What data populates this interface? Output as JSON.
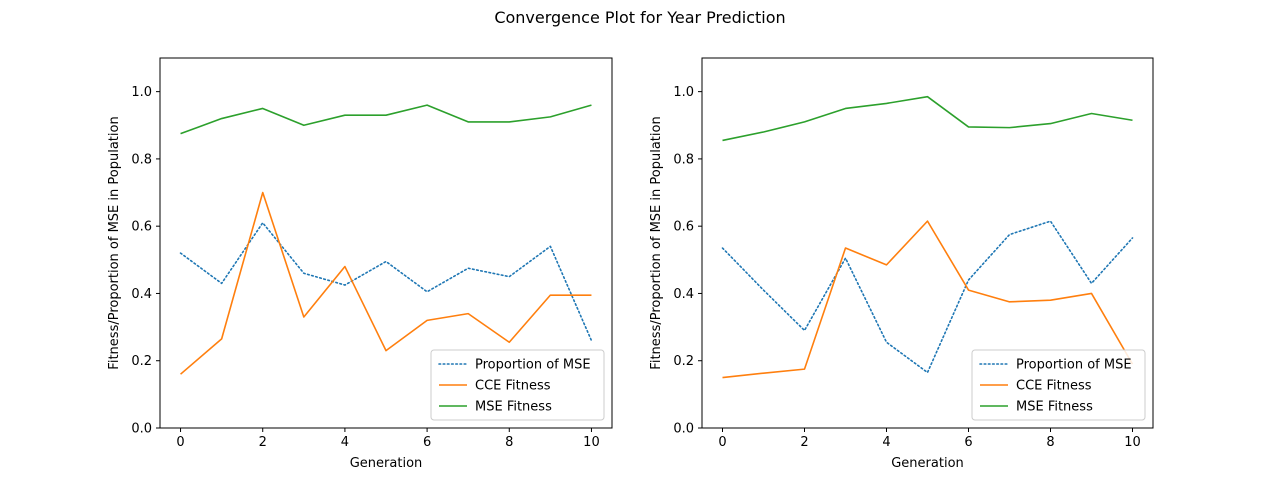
{
  "figure": {
    "title": "Convergence Plot for Year Prediction"
  },
  "colors": {
    "proportion": "#1f77b4",
    "cce": "#ff7f0e",
    "mse": "#2ca02c"
  },
  "chart_data": [
    {
      "type": "line",
      "title": "",
      "xlabel": "Generation",
      "ylabel": "Fitness/Proportion of MSE in Population",
      "xlim": [
        -0.5,
        10.5
      ],
      "ylim": [
        0.0,
        1.1
      ],
      "xticks": [
        "0",
        "2",
        "4",
        "6",
        "8",
        "10"
      ],
      "yticks": [
        "0.0",
        "0.2",
        "0.4",
        "0.6",
        "0.8",
        "1.0"
      ],
      "legend_position": "lower-right",
      "grid": false,
      "x": [
        0,
        1,
        2,
        3,
        4,
        5,
        6,
        7,
        8,
        9,
        10
      ],
      "series": [
        {
          "name": "Proportion of MSE",
          "style": "dotted",
          "values": [
            0.52,
            0.43,
            0.61,
            0.46,
            0.425,
            0.495,
            0.405,
            0.475,
            0.45,
            0.54,
            0.26
          ]
        },
        {
          "name": "CCE Fitness",
          "style": "solid",
          "values": [
            0.16,
            0.265,
            0.7,
            0.33,
            0.48,
            0.23,
            0.32,
            0.34,
            0.255,
            0.395,
            0.395
          ]
        },
        {
          "name": "MSE Fitness",
          "style": "solid",
          "values": [
            0.875,
            0.92,
            0.95,
            0.9,
            0.93,
            0.93,
            0.96,
            0.91,
            0.91,
            0.925,
            0.96
          ]
        }
      ]
    },
    {
      "type": "line",
      "title": "",
      "xlabel": "Generation",
      "ylabel": "Fitness/Proportion of MSE in Population",
      "xlim": [
        -0.5,
        10.5
      ],
      "ylim": [
        0.0,
        1.1
      ],
      "xticks": [
        "0",
        "2",
        "4",
        "6",
        "8",
        "10"
      ],
      "yticks": [
        "0.0",
        "0.2",
        "0.4",
        "0.6",
        "0.8",
        "1.0"
      ],
      "legend_position": "lower-right",
      "grid": false,
      "x": [
        0,
        1,
        2,
        3,
        4,
        5,
        6,
        7,
        8,
        9,
        10
      ],
      "series": [
        {
          "name": "Proportion of MSE",
          "style": "dotted",
          "values": [
            0.535,
            0.41,
            0.29,
            0.505,
            0.255,
            0.165,
            0.44,
            0.575,
            0.615,
            0.43,
            0.565
          ]
        },
        {
          "name": "CCE Fitness",
          "style": "solid",
          "values": [
            0.15,
            0.163,
            0.175,
            0.535,
            0.485,
            0.615,
            0.41,
            0.375,
            0.38,
            0.4,
            0.19
          ]
        },
        {
          "name": "MSE Fitness",
          "style": "solid",
          "values": [
            0.855,
            0.88,
            0.91,
            0.95,
            0.965,
            0.985,
            0.895,
            0.893,
            0.905,
            0.935,
            0.915
          ]
        }
      ]
    }
  ]
}
